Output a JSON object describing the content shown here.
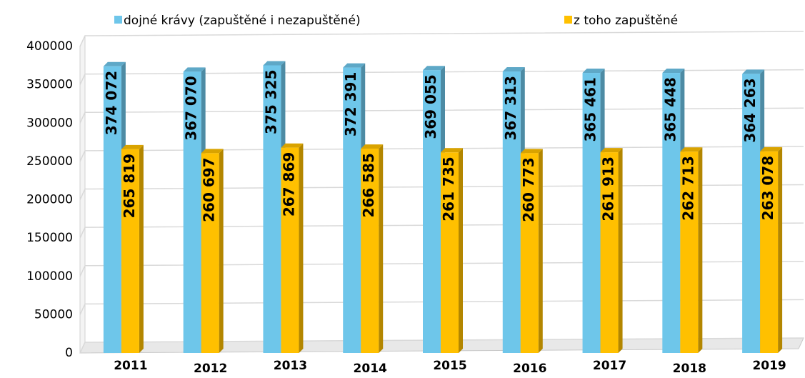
{
  "chart_data": {
    "type": "bar",
    "categories": [
      "2011",
      "2012",
      "2013",
      "2014",
      "2015",
      "2016",
      "2017",
      "2018",
      "2019"
    ],
    "series": [
      {
        "name": "dojné krávy (zapuštěné i nezapuštěné)",
        "color": "#6ec6ea",
        "values": [
          374072,
          367070,
          375325,
          372391,
          369055,
          367313,
          365461,
          365448,
          364263
        ],
        "value_labels": [
          "374 072",
          "367 070",
          "375 325",
          "372 391",
          "369 055",
          "367 313",
          "365 461",
          "365 448",
          "364 263"
        ]
      },
      {
        "name": "z toho zapuštěné",
        "color": "#ffc000",
        "values": [
          265819,
          260697,
          267869,
          266585,
          261735,
          260773,
          261913,
          262713,
          263078
        ],
        "value_labels": [
          "265 819",
          "260 697",
          "267 869",
          "266 585",
          "261 735",
          "260 773",
          "261 913",
          "262 713",
          "263 078"
        ]
      }
    ],
    "ylim": [
      0,
      400000
    ],
    "yticks": [
      0,
      50000,
      100000,
      150000,
      200000,
      250000,
      300000,
      350000,
      400000
    ],
    "grid": true
  }
}
